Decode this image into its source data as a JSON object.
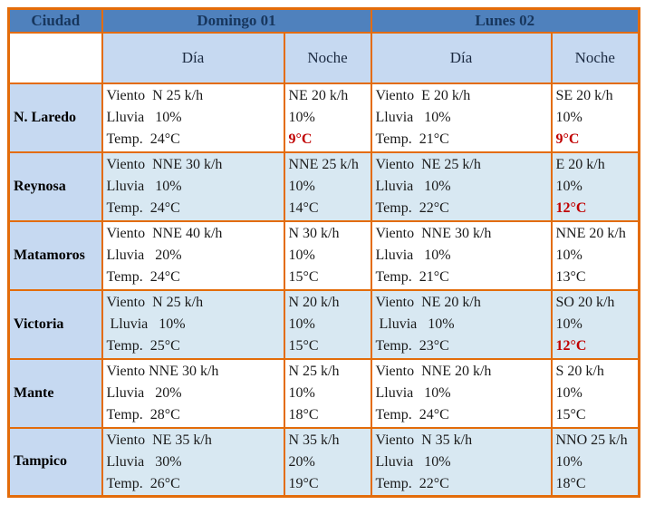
{
  "table": {
    "corner_label": "Ciudad",
    "day_headers": {
      "sunday": "Domingo 01",
      "monday": "Lunes 02"
    },
    "sub_headers": {
      "day1": "Día",
      "night1": "Noche",
      "day2": "Día",
      "night2": "Noche"
    },
    "colors": {
      "border_orange": "#e36c0a",
      "header_blue": "#4f81bd",
      "light_blue": "#c6d9f1",
      "row_shade_blue": "#d8e8f2",
      "header_text_navy": "#17365d",
      "alert_red": "#c00000"
    },
    "rows": [
      {
        "city": "N. Laredo",
        "shaded": false,
        "cells": [
          {
            "lines": [
              "Viento  N 25 k/h",
              "Lluvia   10%",
              "Temp.  24°C"
            ],
            "red_temp": false
          },
          {
            "lines": [
              "NE 20 k/h",
              "10%",
              "9°C"
            ],
            "red_temp": true
          },
          {
            "lines": [
              "Viento  E 20 k/h",
              "Lluvia   10%",
              "Temp.  21°C"
            ],
            "red_temp": false
          },
          {
            "lines": [
              "SE 20 k/h",
              "10%",
              "9°C"
            ],
            "red_temp": true
          }
        ]
      },
      {
        "city": "Reynosa",
        "shaded": true,
        "cells": [
          {
            "lines": [
              "Viento  NNE 30 k/h",
              "Lluvia   10%",
              "Temp.  24°C"
            ],
            "red_temp": false
          },
          {
            "lines": [
              "NNE 25 k/h",
              "10%",
              "14°C"
            ],
            "red_temp": false
          },
          {
            "lines": [
              "Viento  NE 25 k/h",
              "Lluvia   10%",
              "Temp.  22°C"
            ],
            "red_temp": false
          },
          {
            "lines": [
              "E 20 k/h",
              "10%",
              "12°C"
            ],
            "red_temp": true
          }
        ]
      },
      {
        "city": "Matamoros",
        "shaded": false,
        "cells": [
          {
            "lines": [
              "Viento  NNE 40 k/h",
              "Lluvia   20%",
              "Temp.  24°C"
            ],
            "red_temp": false
          },
          {
            "lines": [
              "N 30 k/h",
              "10%",
              "15°C"
            ],
            "red_temp": false
          },
          {
            "lines": [
              "Viento  NNE 30 k/h",
              "Lluvia   10%",
              "Temp.  21°C"
            ],
            "red_temp": false
          },
          {
            "lines": [
              "NNE 20 k/h",
              "10%",
              "13°C"
            ],
            "red_temp": false
          }
        ]
      },
      {
        "city": "Victoria",
        "shaded": true,
        "cells": [
          {
            "lines": [
              "Viento  N 25 k/h",
              " Lluvia   10%",
              "Temp.  25°C"
            ],
            "red_temp": false
          },
          {
            "lines": [
              "N 20 k/h",
              "10%",
              "15°C"
            ],
            "red_temp": false
          },
          {
            "lines": [
              "Viento  NE 20 k/h",
              " Lluvia   10%",
              "Temp.  23°C"
            ],
            "red_temp": false
          },
          {
            "lines": [
              "SO 20 k/h",
              "10%",
              "12°C"
            ],
            "red_temp": true
          }
        ]
      },
      {
        "city": "Mante",
        "shaded": false,
        "cells": [
          {
            "lines": [
              "Viento NNE 30 k/h",
              "Lluvia   20%",
              "Temp.  28°C"
            ],
            "red_temp": false
          },
          {
            "lines": [
              "N 25 k/h",
              "10%",
              "18°C"
            ],
            "red_temp": false
          },
          {
            "lines": [
              "Viento  NNE 20 k/h",
              "Lluvia   10%",
              "Temp.  24°C"
            ],
            "red_temp": false
          },
          {
            "lines": [
              "S 20 k/h",
              "10%",
              "15°C"
            ],
            "red_temp": false
          }
        ]
      },
      {
        "city": "Tampico",
        "shaded": true,
        "cells": [
          {
            "lines": [
              "Viento  NE 35 k/h",
              "Lluvia   30%",
              "Temp.  26°C"
            ],
            "red_temp": false
          },
          {
            "lines": [
              "N 35 k/h",
              "20%",
              "19°C"
            ],
            "red_temp": false
          },
          {
            "lines": [
              "Viento  N 35 k/h",
              "Lluvia   10%",
              "Temp.  22°C"
            ],
            "red_temp": false
          },
          {
            "lines": [
              "NNO 25 k/h",
              "10%",
              "18°C"
            ],
            "red_temp": false
          }
        ]
      }
    ]
  }
}
